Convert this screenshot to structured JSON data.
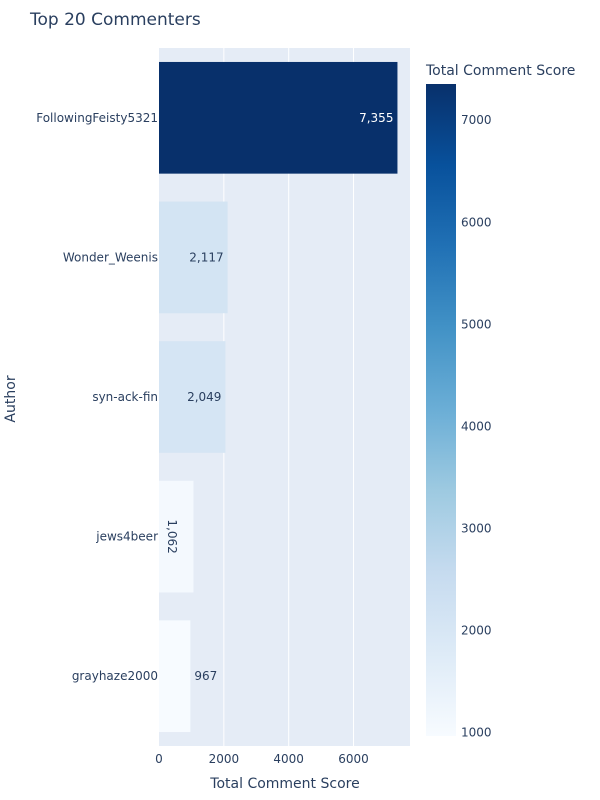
{
  "chart_data": {
    "type": "bar",
    "orientation": "horizontal",
    "title": "Top 20 Commenters",
    "xlabel": "Total Comment Score",
    "ylabel": "Author",
    "categories": [
      "FollowingFeisty5321",
      "Wonder_Weenis",
      "syn-ack-fin",
      "jews4beer",
      "grayhaze2000"
    ],
    "values": [
      7355,
      2117,
      2049,
      1062,
      967
    ],
    "value_labels": [
      "7,355",
      "2,117",
      "2,049",
      "1,062",
      "967"
    ],
    "xlim": [
      0,
      7742
    ],
    "x_ticks": [
      0,
      2000,
      4000,
      6000
    ],
    "x_tick_labels": [
      "0",
      "2000",
      "4000",
      "6000"
    ],
    "grid": true,
    "colorbar": {
      "title": "Total Comment Score",
      "range": [
        967,
        7355
      ],
      "ticks": [
        1000,
        2000,
        3000,
        4000,
        5000,
        6000,
        7000
      ],
      "tick_labels": [
        "1000",
        "2000",
        "3000",
        "4000",
        "5000",
        "6000",
        "7000"
      ],
      "colorscale": [
        "#f7fbff",
        "#deebf7",
        "#c6dbef",
        "#9ecae1",
        "#6baed6",
        "#4292c6",
        "#2171b5",
        "#08519c",
        "#08306b"
      ]
    },
    "plot_background": "#e5ecf6"
  }
}
